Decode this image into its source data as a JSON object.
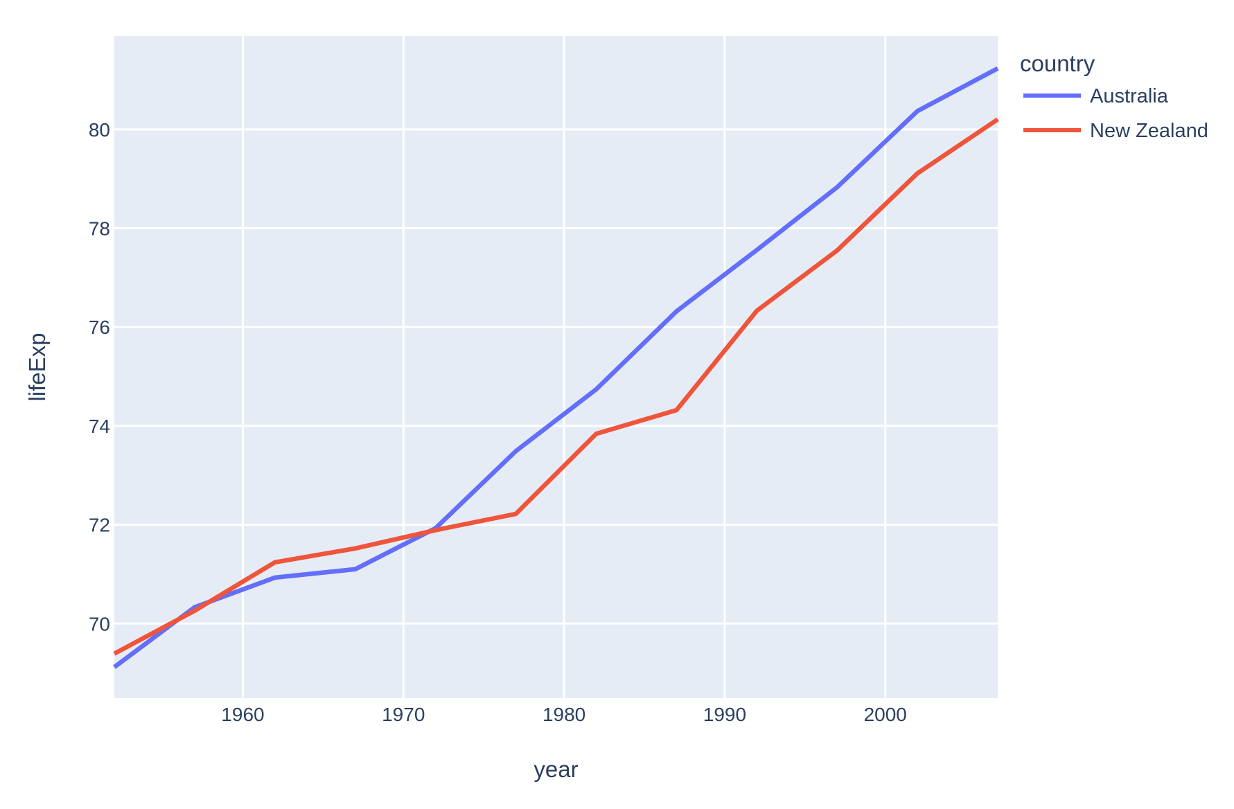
{
  "chart_data": {
    "type": "line",
    "title": "",
    "xlabel": "year",
    "ylabel": "lifeExp",
    "legend_title": "country",
    "x": [
      1952,
      1957,
      1962,
      1967,
      1972,
      1977,
      1982,
      1987,
      1992,
      1997,
      2002,
      2007
    ],
    "series": [
      {
        "name": "Australia",
        "color": "#636EFA",
        "values": [
          69.12,
          70.33,
          70.93,
          71.1,
          71.93,
          73.49,
          74.74,
          76.32,
          77.56,
          78.83,
          80.37,
          81.235
        ]
      },
      {
        "name": "New Zealand",
        "color": "#EF553B",
        "values": [
          69.39,
          70.26,
          71.24,
          71.52,
          71.89,
          72.22,
          73.84,
          74.32,
          76.33,
          77.55,
          79.11,
          80.204
        ]
      }
    ],
    "x_ticks": [
      1960,
      1970,
      1980,
      1990,
      2000
    ],
    "y_ticks": [
      70,
      72,
      74,
      76,
      78,
      80
    ],
    "x_range": [
      1952,
      2007
    ],
    "y_range": [
      68.49,
      81.89
    ],
    "grid": true,
    "legend_position": "right-top",
    "colors": {
      "plot_bg": "#E5ECF6",
      "paper_bg": "#FFFFFF",
      "grid": "#FFFFFF",
      "text": "#2A3F5F"
    }
  }
}
